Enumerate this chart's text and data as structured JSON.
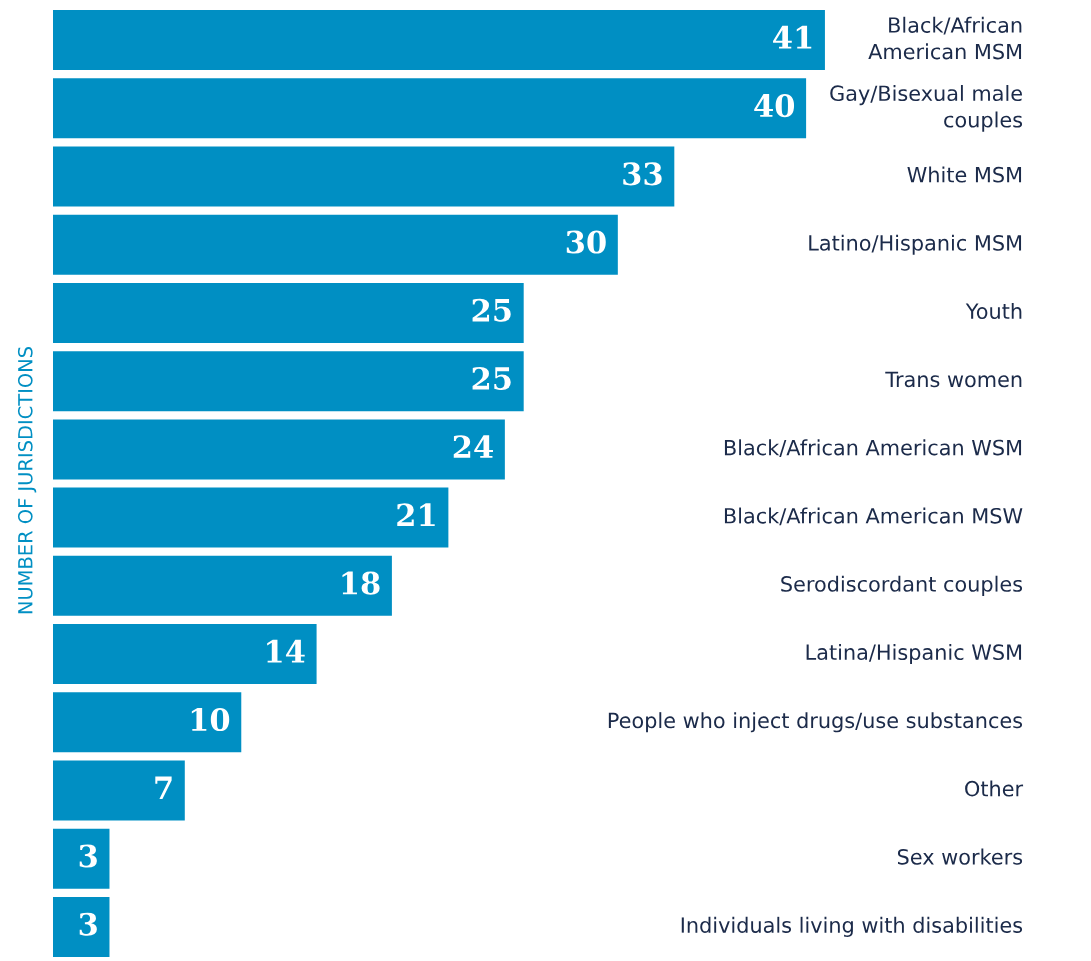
{
  "chart_data": {
    "type": "bar",
    "orientation": "horizontal",
    "ylabel": "NUMBER OF JURISDICTIONS",
    "categories": [
      "Black/African\nAmerican MSM",
      "Gay/Bisexual male\ncouples",
      "White MSM",
      "Latino/Hispanic MSM",
      "Youth",
      "Trans women",
      "Black/African American WSM",
      "Black/African American MSW",
      "Serodiscordant couples",
      "Latina/Hispanic WSM",
      "People who inject drugs/use substances",
      "Other",
      "Sex workers",
      "Individuals living with disabilities"
    ],
    "values": [
      41,
      40,
      33,
      30,
      25,
      25,
      24,
      21,
      18,
      14,
      10,
      7,
      3,
      3
    ],
    "color": "#008fc3",
    "data_labels": true
  }
}
